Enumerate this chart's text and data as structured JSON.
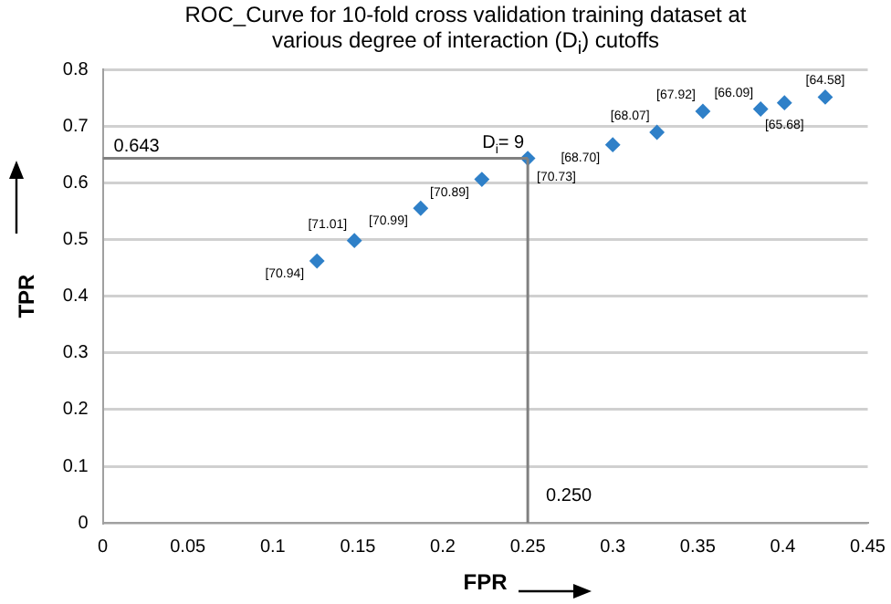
{
  "chart_data": {
    "type": "scatter",
    "title": "ROC_Curve for 10-fold cross validation training dataset at various degree of interaction (D$_{i}$) cutoffs",
    "xlabel": "FPR",
    "ylabel": "TPR",
    "x": [
      0.126,
      0.148,
      0.187,
      0.223,
      0.25,
      0.3,
      0.326,
      0.353,
      0.387,
      0.401,
      0.425
    ],
    "series": [
      {
        "color": "#2f80c8",
        "values": [
          0.462,
          0.498,
          0.555,
          0.606,
          0.643,
          0.667,
          0.689,
          0.726,
          0.73,
          0.741,
          0.751
        ]
      }
    ],
    "xlim": [
      0,
      0.45
    ],
    "xticks": [
      0,
      0.05,
      0.1,
      0.15,
      0.2,
      0.25,
      0.3,
      0.35,
      0.4,
      0.45
    ],
    "ylim": [
      0,
      0.8
    ],
    "yticks": [
      0,
      0.1,
      0.2,
      0.3,
      0.4,
      0.5,
      0.6,
      0.7,
      0.8
    ],
    "ref_lines": [
      {
        "axis": "x",
        "value": 0.25,
        "label": "0.250",
        "color": "#808080"
      },
      {
        "axis": "y",
        "value": 0.643,
        "label": "0.643",
        "color": "#808080"
      }
    ],
    "annotations": [
      {
        "text": "[70.94]",
        "x": 0.126,
        "y": 0.462
      },
      {
        "text": "[71.01]",
        "x": 0.148,
        "y": 0.498
      },
      {
        "text": "[70.99]",
        "x": 0.187,
        "y": 0.555
      },
      {
        "text": "[70.89]",
        "x": 0.223,
        "y": 0.606
      },
      {
        "text": "[70.73]",
        "x": 0.25,
        "y": 0.643
      },
      {
        "text": "[68.70]",
        "x": 0.3,
        "y": 0.667
      },
      {
        "text": "[68.07]",
        "x": 0.326,
        "y": 0.689
      },
      {
        "text": "[67.92]",
        "x": 0.353,
        "y": 0.726
      },
      {
        "text": "[66.09]",
        "x": 0.387,
        "y": 0.73
      },
      {
        "text": "[65.68]",
        "x": 0.401,
        "y": 0.741
      },
      {
        "text": "[64.58]",
        "x": 0.425,
        "y": 0.751
      },
      {
        "text": "D$_{i}$= 9",
        "x": 0.25,
        "y": 0.643
      }
    ],
    "grid": "y",
    "legend": false,
    "marker": "diamond"
  }
}
